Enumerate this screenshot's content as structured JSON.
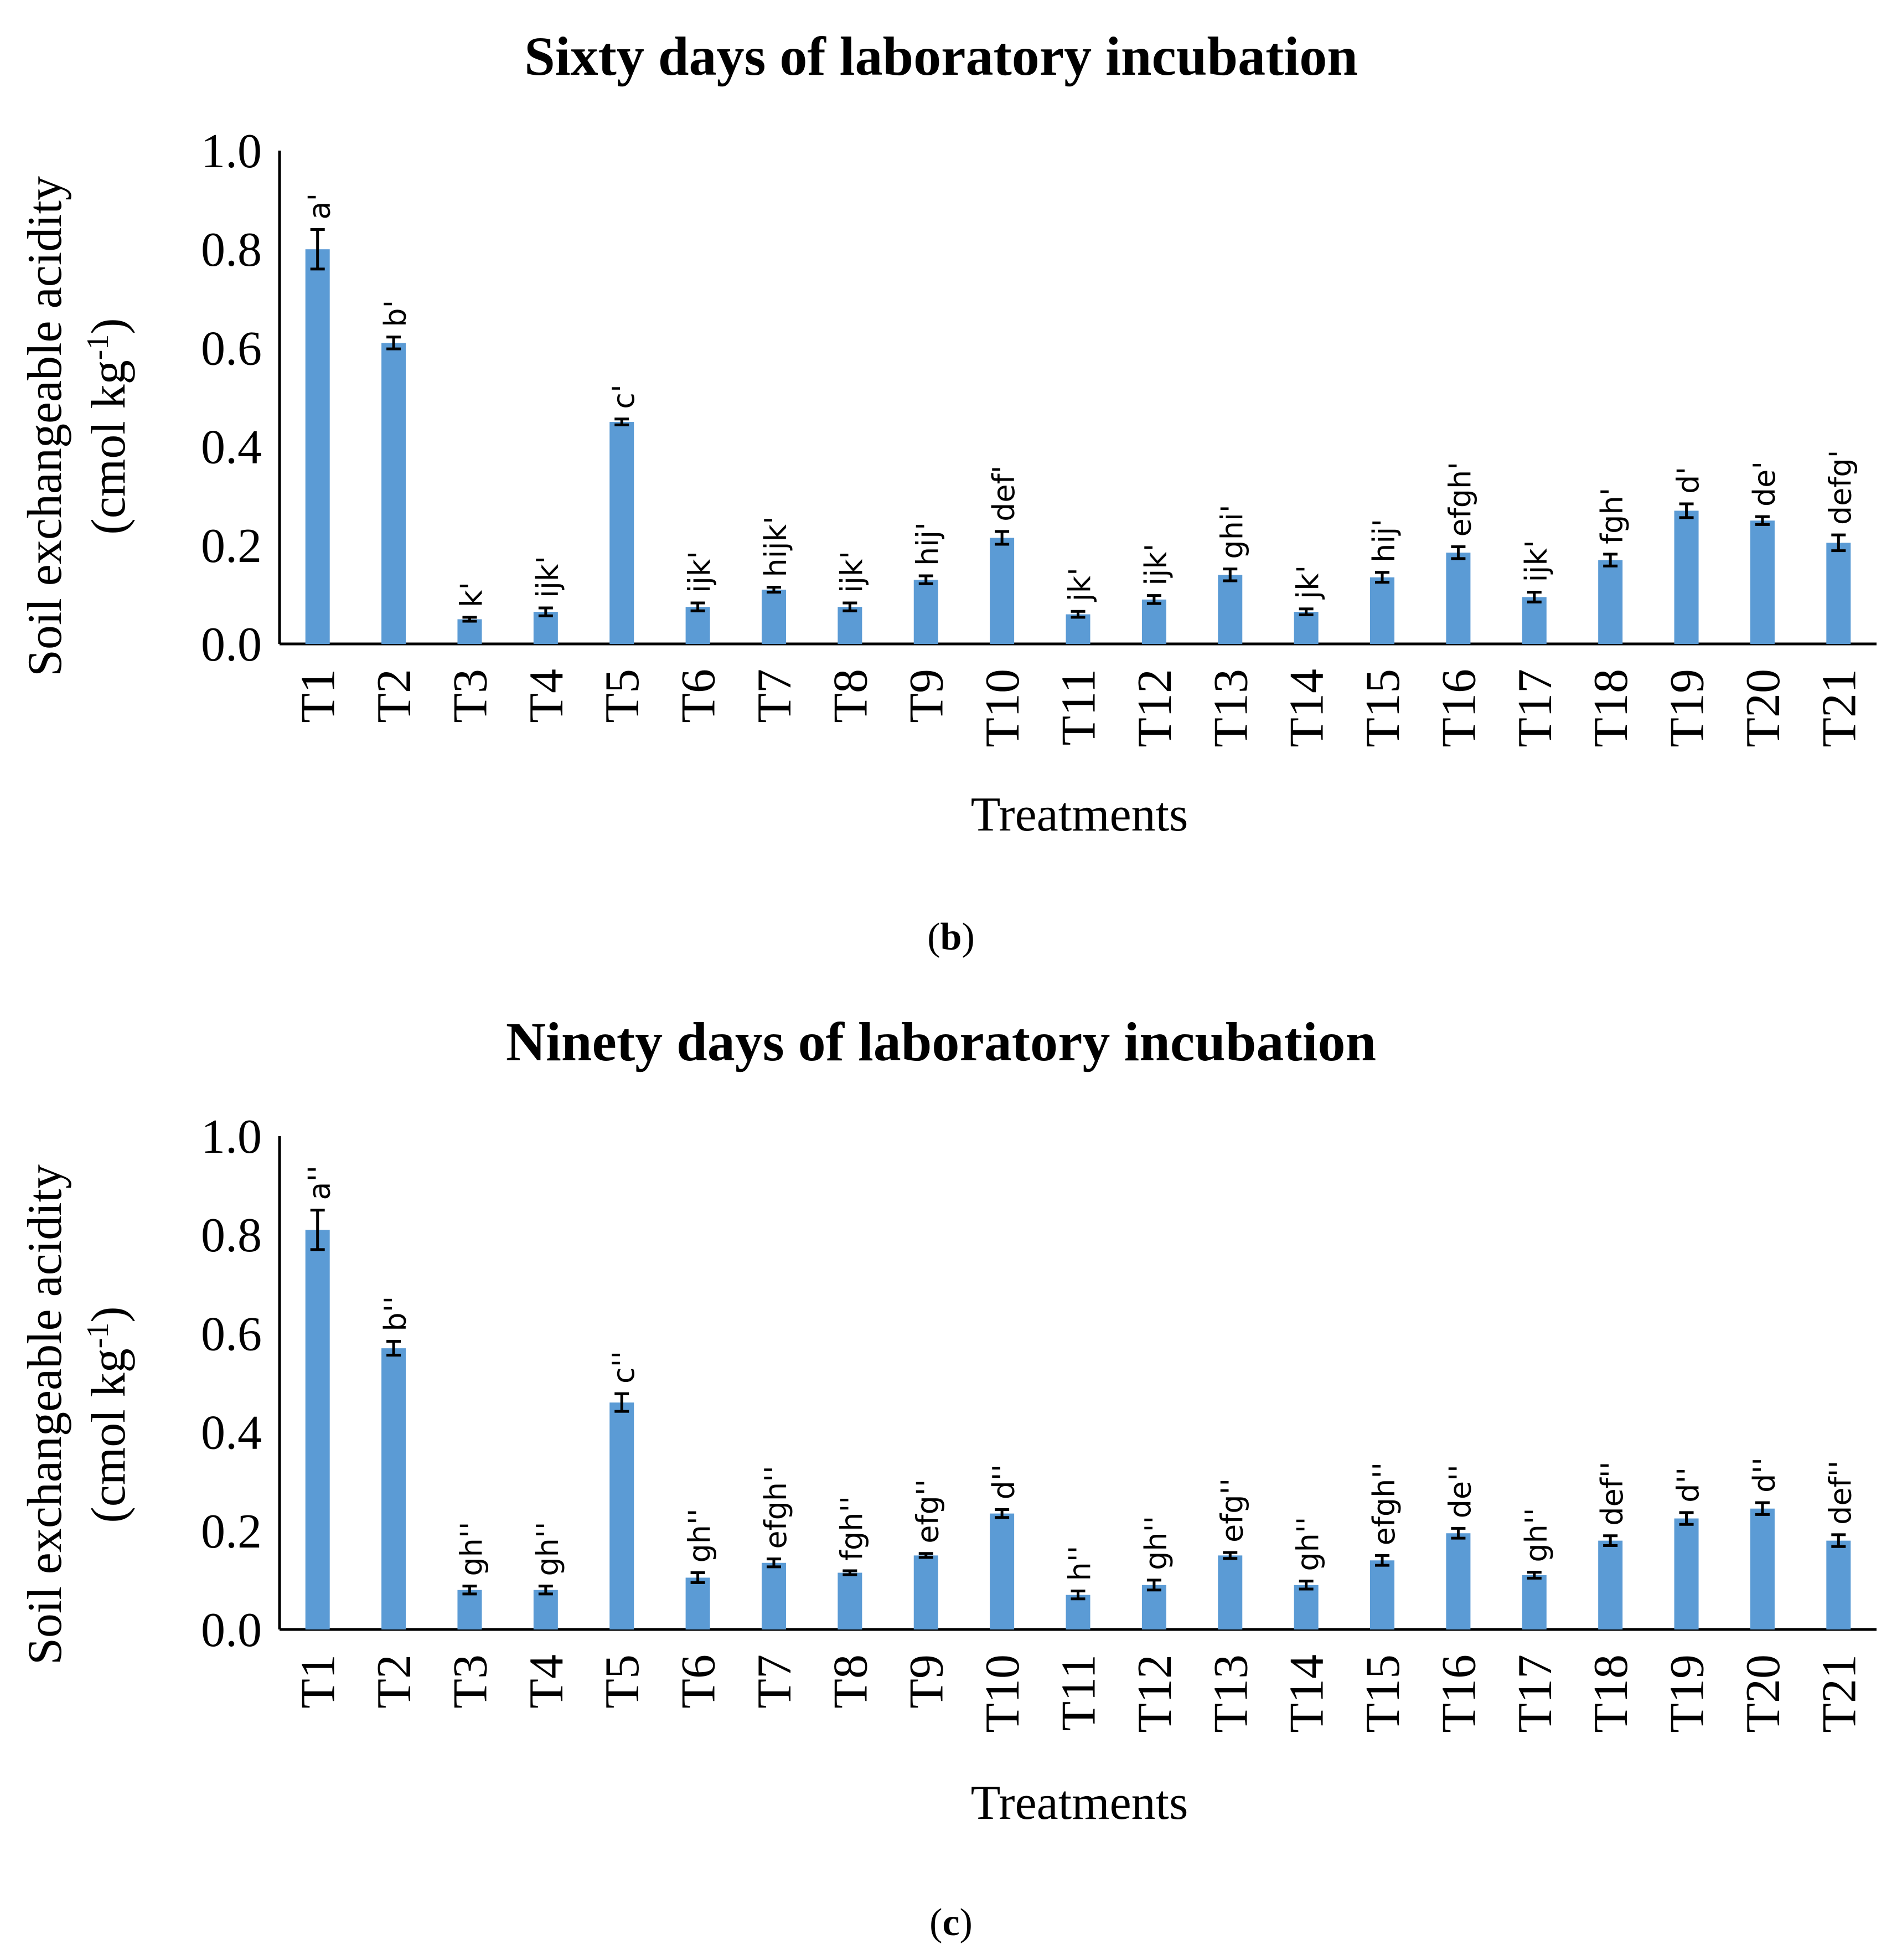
{
  "chart_data": [
    {
      "type": "bar",
      "panel": "b",
      "title": "Sixty days of laboratory incubation",
      "xlabel": "Treatments",
      "ylabel": "Soil exchangeable acidity",
      "ylabel_units": "(cmol kg-1)",
      "ylim": [
        0,
        1.0
      ],
      "yticks": [
        "0.0",
        "0.2",
        "0.4",
        "0.6",
        "0.8",
        "1.0"
      ],
      "categories": [
        "T1",
        "T2",
        "T3",
        "T4",
        "T5",
        "T6",
        "T7",
        "T8",
        "T9",
        "T10",
        "T11",
        "T12",
        "T13",
        "T14",
        "T15",
        "T16",
        "T17",
        "T18",
        "T19",
        "T20",
        "T21"
      ],
      "values": [
        0.8,
        0.61,
        0.05,
        0.065,
        0.45,
        0.075,
        0.11,
        0.075,
        0.13,
        0.215,
        0.06,
        0.09,
        0.14,
        0.065,
        0.135,
        0.185,
        0.095,
        0.17,
        0.27,
        0.25,
        0.205
      ],
      "errors": [
        0.04,
        0.012,
        0.004,
        0.008,
        0.006,
        0.008,
        0.005,
        0.008,
        0.008,
        0.013,
        0.006,
        0.008,
        0.012,
        0.006,
        0.01,
        0.012,
        0.01,
        0.012,
        0.014,
        0.008,
        0.016
      ],
      "sig_labels": [
        "a'",
        "b'",
        "k'",
        "ijk'",
        "c'",
        "ijk'",
        "hijk'",
        "ijk'",
        "hij'",
        "def'",
        "jk'",
        "ijk'",
        "ghi'",
        "jk'",
        "hij'",
        "efgh'",
        "ijk'",
        "fgh'",
        "d'",
        "de'",
        "defg'"
      ],
      "panel_open": "(",
      "panel_close": ")"
    },
    {
      "type": "bar",
      "panel": "c",
      "title": "Ninety days of laboratory incubation",
      "xlabel": "Treatments",
      "ylabel": "Soil exchangeable acidity",
      "ylabel_units": "(cmol kg-1)",
      "ylim": [
        0,
        1.0
      ],
      "yticks": [
        "0.0",
        "0.2",
        "0.4",
        "0.6",
        "0.8",
        "1.0"
      ],
      "categories": [
        "T1",
        "T2",
        "T3",
        "T4",
        "T5",
        "T6",
        "T7",
        "T8",
        "T9",
        "T10",
        "T11",
        "T12",
        "T13",
        "T14",
        "T15",
        "T16",
        "T17",
        "T18",
        "T19",
        "T20",
        "T21"
      ],
      "values": [
        0.81,
        0.57,
        0.08,
        0.08,
        0.46,
        0.105,
        0.135,
        0.115,
        0.15,
        0.235,
        0.07,
        0.09,
        0.15,
        0.09,
        0.14,
        0.195,
        0.11,
        0.18,
        0.225,
        0.245,
        0.18
      ],
      "errors": [
        0.04,
        0.014,
        0.008,
        0.008,
        0.018,
        0.01,
        0.008,
        0.004,
        0.004,
        0.008,
        0.008,
        0.01,
        0.006,
        0.008,
        0.01,
        0.01,
        0.006,
        0.01,
        0.012,
        0.012,
        0.012
      ],
      "sig_labels": [
        "a''",
        "b''",
        "gh''",
        "gh''",
        "c''",
        "gh''",
        "efgh''",
        "fgh''",
        "efg''",
        "d''",
        "h''",
        "gh''",
        "efg''",
        "gh''",
        "efgh''",
        "de''",
        "gh''",
        "def''",
        "d''",
        "d''",
        "def''"
      ],
      "panel_open": "(",
      "panel_close": ")"
    }
  ]
}
